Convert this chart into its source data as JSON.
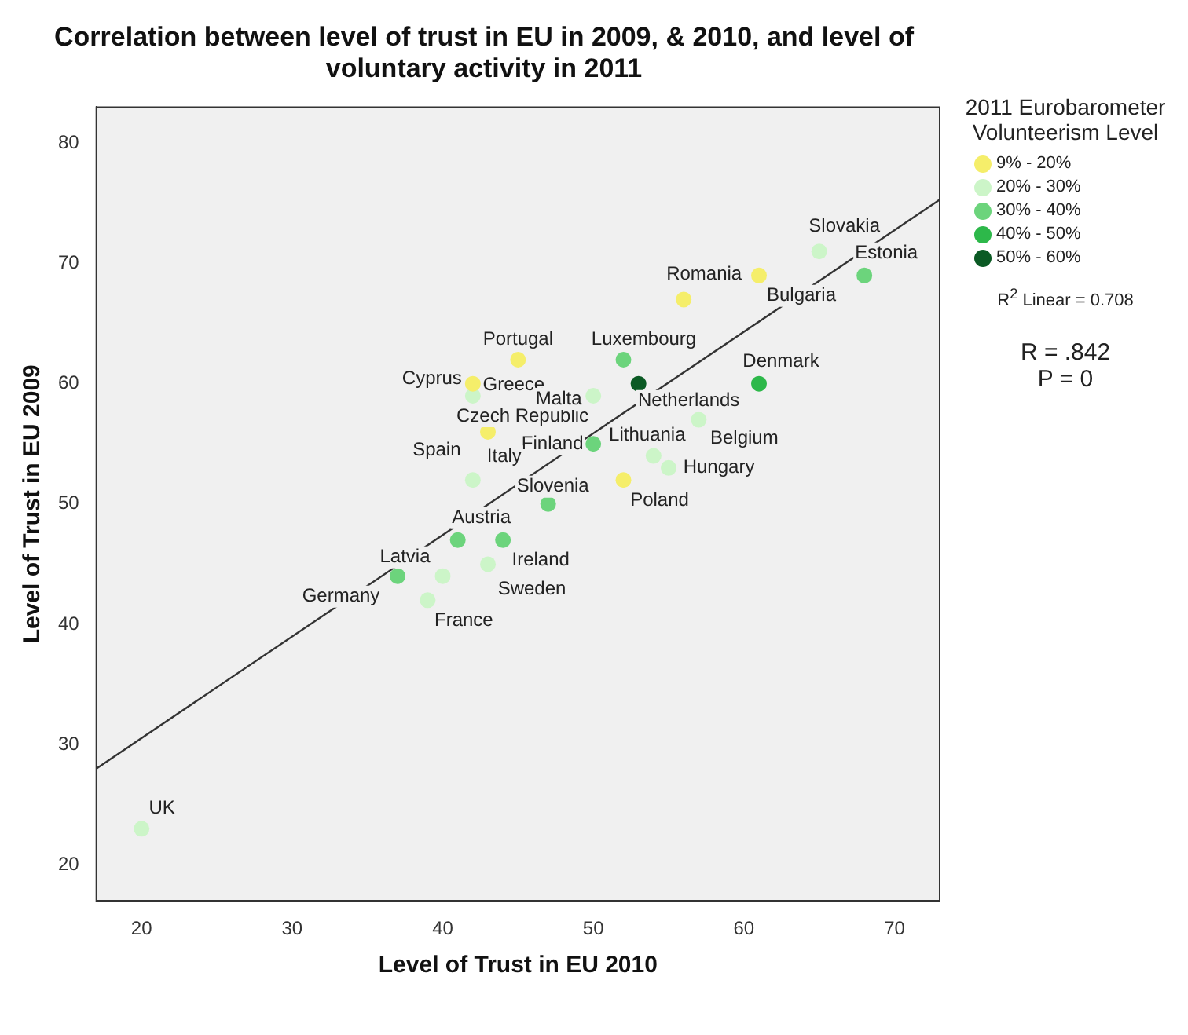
{
  "chart_data": {
    "type": "scatter",
    "title": "Correlation between level of trust in EU in 2009, & 2010, and level of voluntary activity in 2011",
    "xlabel": "Level of Trust in EU 2010",
    "ylabel": "Level of Trust in EU 2009",
    "legend_title": "2011 Eurobarometer Volunteerism Level",
    "xlim": [
      17,
      73
    ],
    "ylim": [
      17,
      83
    ],
    "xticks": [
      20,
      30,
      40,
      50,
      60,
      70
    ],
    "yticks": [
      20,
      30,
      40,
      50,
      60,
      70,
      80
    ],
    "grid": false,
    "legend": "right",
    "marker": "circle",
    "series": [
      {
        "name": "9% - 20%",
        "color": "#f5ee6a",
        "x": [
          56,
          61,
          45,
          42,
          43,
          52
        ],
        "values": [
          67,
          69,
          62,
          60,
          56,
          52
        ]
      },
      {
        "name": "20% - 30%",
        "color": "#ccf5c8",
        "x": [
          20,
          40,
          39,
          43,
          65,
          42,
          50,
          57,
          54,
          55,
          42
        ],
        "values": [
          23,
          44,
          42,
          45,
          71,
          59,
          59,
          57,
          54,
          53,
          52
        ]
      },
      {
        "name": "30% - 40%",
        "color": "#6cd47c",
        "x": [
          37,
          41,
          44,
          47,
          68,
          52,
          50
        ],
        "values": [
          44,
          47,
          47,
          50,
          69,
          62,
          55
        ]
      },
      {
        "name": "40% - 50%",
        "color": "#2db84a",
        "x": [
          61
        ],
        "values": [
          60
        ]
      },
      {
        "name": "50% - 60%",
        "color": "#0b5a24",
        "x": [
          53
        ],
        "values": [
          60
        ]
      },
      {
        "type": "line",
        "marker": "none",
        "color": "#333333",
        "x": [
          17,
          73
        ],
        "values": [
          28,
          75.3
        ]
      }
    ],
    "annotations": [
      {
        "text": "Slovakia",
        "x": 65,
        "y": 71
      },
      {
        "text": "Estonia",
        "x": 68,
        "y": 69
      },
      {
        "text": "Romania",
        "x": 56,
        "y": 67
      },
      {
        "text": "Bulgaria",
        "x": 61,
        "y": 69
      },
      {
        "text": "Portugal",
        "x": 45,
        "y": 62
      },
      {
        "text": "Luxembourg",
        "x": 52,
        "y": 62
      },
      {
        "text": "Cyprus",
        "x": 42,
        "y": 60
      },
      {
        "text": "Greece",
        "x": 42,
        "y": 59
      },
      {
        "text": "Czech Republic",
        "x": 43,
        "y": 56
      },
      {
        "text": "Netherlands",
        "x": 53,
        "y": 60
      },
      {
        "text": "Denmark",
        "x": 61,
        "y": 60
      },
      {
        "text": "Belgium",
        "x": 57,
        "y": 57
      },
      {
        "text": "Lithuania",
        "x": 54,
        "y": 54
      },
      {
        "text": "Malta",
        "x": 50,
        "y": 59
      },
      {
        "text": "Hungary",
        "x": 55,
        "y": 53
      },
      {
        "text": "Poland",
        "x": 52,
        "y": 52
      },
      {
        "text": "Finland",
        "x": 50,
        "y": 55
      },
      {
        "text": "Spain",
        "x": 42,
        "y": 52
      },
      {
        "text": "Italy",
        "x": 42,
        "y": 52
      },
      {
        "text": "Slovenia",
        "x": 47,
        "y": 50
      },
      {
        "text": "Austria",
        "x": 41,
        "y": 47
      },
      {
        "text": "Ireland",
        "x": 44,
        "y": 47
      },
      {
        "text": "Sweden",
        "x": 43,
        "y": 45
      },
      {
        "text": "Latvia",
        "x": 40,
        "y": 44
      },
      {
        "text": "Germany",
        "x": 37,
        "y": 44
      },
      {
        "text": "France",
        "x": 39,
        "y": 42
      },
      {
        "text": "UK",
        "x": 20,
        "y": 23
      },
      "R$^{2}$ Linear = 0.708",
      "R = .842",
      "P = 0"
    ]
  }
}
